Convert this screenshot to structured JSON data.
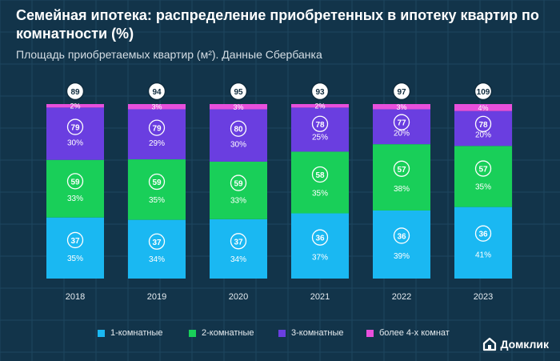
{
  "header": {
    "title": "Семейная ипотека: распределение приобретенных в ипотеку квартир по комнатности (%)",
    "subtitle": "Площадь приобретаемых квартир (м²). Данные Сбербанка"
  },
  "brand": {
    "name": "Домклик",
    "icon": "house-logo-icon"
  },
  "colors": {
    "background": "#12344a",
    "room1": "#1ab8f2",
    "room2": "#19cf59",
    "room3": "#6a3ee0",
    "room4": "#e84fdc"
  },
  "chart_data": {
    "type": "bar",
    "stacked": true,
    "title": "Семейная ипотека: распределение приобретенных в ипотеку квартир по комнатности (%)",
    "subtitle": "Площадь приобретаемых квартир (м²). Данные Сбербанка",
    "categories": [
      "2018",
      "2019",
      "2020",
      "2021",
      "2022",
      "2023"
    ],
    "ylim": [
      0,
      100
    ],
    "legend_position": "bottom",
    "series": [
      {
        "name": "1-комнатные",
        "color": "#1ab8f2",
        "values": [
          35,
          34,
          34,
          37,
          39,
          41
        ],
        "labels": [
          "35%",
          "34%",
          "34%",
          "37%",
          "39%",
          "41%"
        ],
        "area": [
          37,
          37,
          37,
          36,
          36,
          36
        ]
      },
      {
        "name": "2-комнатные",
        "color": "#19cf59",
        "values": [
          33,
          35,
          33,
          35,
          38,
          35
        ],
        "labels": [
          "33%",
          "35%",
          "33%",
          "35%",
          "38%",
          "35%"
        ],
        "area": [
          59,
          59,
          59,
          58,
          57,
          57
        ]
      },
      {
        "name": "3-комнатные",
        "color": "#6a3ee0",
        "values": [
          30,
          29,
          30,
          25,
          20,
          20
        ],
        "labels": [
          "30%",
          "29%",
          "30%",
          "25%",
          "20%",
          "20%"
        ],
        "area": [
          79,
          79,
          80,
          78,
          77,
          78
        ]
      },
      {
        "name": "более 4-х комнат",
        "color": "#e84fdc",
        "values": [
          2,
          3,
          3,
          2,
          3,
          4
        ],
        "labels": [
          "2%",
          "3%",
          "3%",
          "2%",
          "3%",
          "4%"
        ],
        "area": [
          89,
          94,
          95,
          93,
          97,
          109
        ]
      }
    ]
  }
}
